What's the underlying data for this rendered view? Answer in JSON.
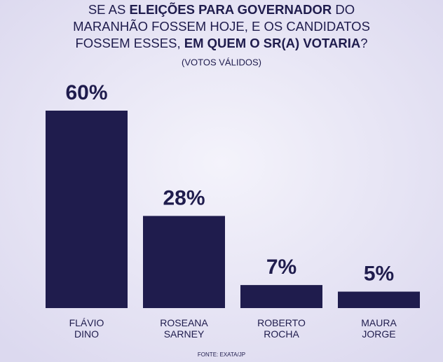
{
  "chart_data": {
    "type": "bar",
    "title_lines": [
      [
        {
          "text": "SE AS ",
          "bold": false
        },
        {
          "text": "ELEIÇÕES PARA GOVERNADOR",
          "bold": true
        },
        {
          "text": " DO",
          "bold": false
        }
      ],
      [
        {
          "text": "MARANHÃO FOSSEM HOJE, E OS CANDIDATOS",
          "bold": false
        }
      ],
      [
        {
          "text": "FOSSEM ESSES, ",
          "bold": false
        },
        {
          "text": "EM QUEM O SR(A) VOTARIA",
          "bold": true
        },
        {
          "text": "?",
          "bold": false
        }
      ]
    ],
    "subtitle": "(VOTOS VÁLIDOS)",
    "categories": [
      "FLÁVIO DINO",
      "ROSEANA SARNEY",
      "ROBERTO ROCHA",
      "MAURA JORGE"
    ],
    "values": [
      60,
      28,
      7,
      5
    ],
    "value_labels": [
      "60%",
      "28%",
      "7%",
      "5%"
    ],
    "color": "#1f1c4d",
    "source": "FONTE: EXATA/JP"
  }
}
